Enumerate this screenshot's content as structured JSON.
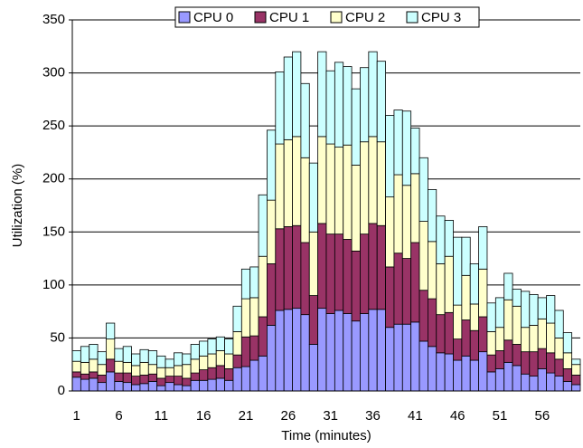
{
  "chart_data": {
    "type": "stacked-bar",
    "x_label": "Time (minutes)",
    "y_label": "Utilization (%)",
    "categories": [
      "1",
      null,
      null,
      null,
      null,
      "6",
      null,
      null,
      null,
      null,
      "11",
      null,
      null,
      null,
      null,
      "16",
      null,
      null,
      null,
      null,
      "21",
      null,
      null,
      null,
      null,
      "26",
      null,
      null,
      null,
      null,
      "31",
      null,
      null,
      null,
      null,
      "36",
      null,
      null,
      null,
      null,
      "41",
      null,
      null,
      null,
      null,
      "46",
      null,
      null,
      null,
      null,
      "51",
      null,
      null,
      null,
      null,
      "56",
      null,
      null,
      null,
      null
    ],
    "series": [
      {
        "name": "CPU 0",
        "color": "#9999ff",
        "values": [
          13,
          11,
          12,
          8,
          18,
          9,
          8,
          6,
          7,
          9,
          5,
          8,
          6,
          5,
          10,
          10,
          11,
          12,
          10,
          22,
          23,
          29,
          33,
          62,
          76,
          77,
          78,
          72,
          44,
          78,
          73,
          76,
          73,
          66,
          73,
          77,
          77,
          60,
          63,
          63,
          65,
          47,
          42,
          36,
          35,
          29,
          33,
          29,
          37,
          18,
          21,
          27,
          24,
          16,
          14,
          21,
          17,
          14,
          9,
          6
        ]
      },
      {
        "name": "CPU 1",
        "color": "#993366",
        "values": [
          5,
          5,
          6,
          7,
          12,
          8,
          9,
          8,
          8,
          7,
          7,
          6,
          8,
          7,
          7,
          10,
          11,
          12,
          11,
          12,
          28,
          23,
          37,
          58,
          77,
          78,
          78,
          68,
          46,
          80,
          75,
          72,
          70,
          66,
          75,
          81,
          79,
          57,
          67,
          62,
          75,
          48,
          45,
          36,
          39,
          20,
          34,
          28,
          33,
          16,
          17,
          21,
          20,
          21,
          23,
          19,
          19,
          16,
          12,
          9
        ]
      },
      {
        "name": "CPU 2",
        "color": "#ffffcc",
        "values": [
          10,
          11,
          12,
          10,
          19,
          11,
          10,
          10,
          12,
          9,
          10,
          8,
          10,
          13,
          13,
          13,
          13,
          14,
          14,
          22,
          36,
          36,
          57,
          60,
          80,
          82,
          84,
          80,
          60,
          82,
          85,
          82,
          89,
          81,
          87,
          82,
          79,
          66,
          74,
          69,
          65,
          65,
          54,
          48,
          53,
          32,
          42,
          25,
          45,
          22,
          22,
          38,
          36,
          23,
          25,
          28,
          28,
          20,
          15,
          10
        ]
      },
      {
        "name": "CPU 3",
        "color": "#ccffff",
        "values": [
          10,
          15,
          14,
          12,
          15,
          12,
          15,
          11,
          12,
          13,
          11,
          8,
          12,
          10,
          14,
          14,
          14,
          13,
          14,
          24,
          28,
          29,
          58,
          66,
          68,
          78,
          80,
          70,
          65,
          80,
          69,
          80,
          74,
          72,
          70,
          80,
          76,
          77,
          61,
          70,
          43,
          60,
          49,
          45,
          34,
          64,
          36,
          38,
          40,
          27,
          28,
          25,
          16,
          34,
          29,
          20,
          26,
          26,
          19,
          5
        ]
      }
    ],
    "ylim": [
      0,
      350
    ],
    "yticks": [
      0,
      50,
      100,
      150,
      200,
      250,
      300,
      350
    ],
    "grid": true,
    "legend": "top"
  }
}
